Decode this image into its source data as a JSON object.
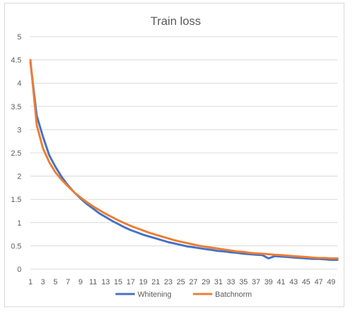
{
  "chart_data": {
    "type": "line",
    "title": "Train loss",
    "xlabel": "",
    "ylabel": "",
    "ylim": [
      0,
      5
    ],
    "yticks": [
      "0",
      "0.5",
      "1",
      "1.5",
      "2",
      "2.5",
      "3",
      "3.5",
      "4",
      "4.5",
      "5"
    ],
    "x": [
      1,
      2,
      3,
      4,
      5,
      6,
      7,
      8,
      9,
      10,
      11,
      12,
      13,
      14,
      15,
      16,
      17,
      18,
      19,
      20,
      21,
      22,
      23,
      24,
      25,
      26,
      27,
      28,
      29,
      30,
      31,
      32,
      33,
      34,
      35,
      36,
      37,
      38,
      39,
      40,
      41,
      42,
      43,
      44,
      45,
      46,
      47,
      48,
      49,
      50
    ],
    "xtick_labels": [
      "1",
      "3",
      "5",
      "7",
      "9",
      "11",
      "13",
      "15",
      "17",
      "19",
      "21",
      "23",
      "25",
      "27",
      "29",
      "31",
      "33",
      "35",
      "37",
      "39",
      "41",
      "43",
      "45",
      "47",
      "49"
    ],
    "grid": true,
    "legend": "bottom",
    "series": [
      {
        "name": "Whitening",
        "color": "#4472c4",
        "values": [
          4.45,
          3.3,
          2.85,
          2.45,
          2.2,
          1.98,
          1.8,
          1.65,
          1.52,
          1.4,
          1.3,
          1.2,
          1.12,
          1.04,
          0.97,
          0.9,
          0.84,
          0.79,
          0.74,
          0.7,
          0.66,
          0.62,
          0.58,
          0.55,
          0.52,
          0.49,
          0.47,
          0.45,
          0.43,
          0.41,
          0.39,
          0.38,
          0.36,
          0.35,
          0.33,
          0.32,
          0.31,
          0.3,
          0.23,
          0.28,
          0.27,
          0.26,
          0.25,
          0.24,
          0.23,
          0.22,
          0.22,
          0.21,
          0.2,
          0.2
        ]
      },
      {
        "name": "Batchnorm",
        "color": "#ed7d31",
        "values": [
          4.5,
          3.1,
          2.6,
          2.3,
          2.08,
          1.92,
          1.78,
          1.65,
          1.54,
          1.44,
          1.35,
          1.27,
          1.19,
          1.12,
          1.05,
          0.99,
          0.93,
          0.88,
          0.83,
          0.78,
          0.74,
          0.7,
          0.66,
          0.62,
          0.59,
          0.56,
          0.53,
          0.5,
          0.48,
          0.46,
          0.44,
          0.42,
          0.4,
          0.38,
          0.37,
          0.35,
          0.34,
          0.33,
          0.32,
          0.31,
          0.3,
          0.29,
          0.28,
          0.27,
          0.26,
          0.25,
          0.24,
          0.24,
          0.23,
          0.23
        ]
      }
    ]
  }
}
